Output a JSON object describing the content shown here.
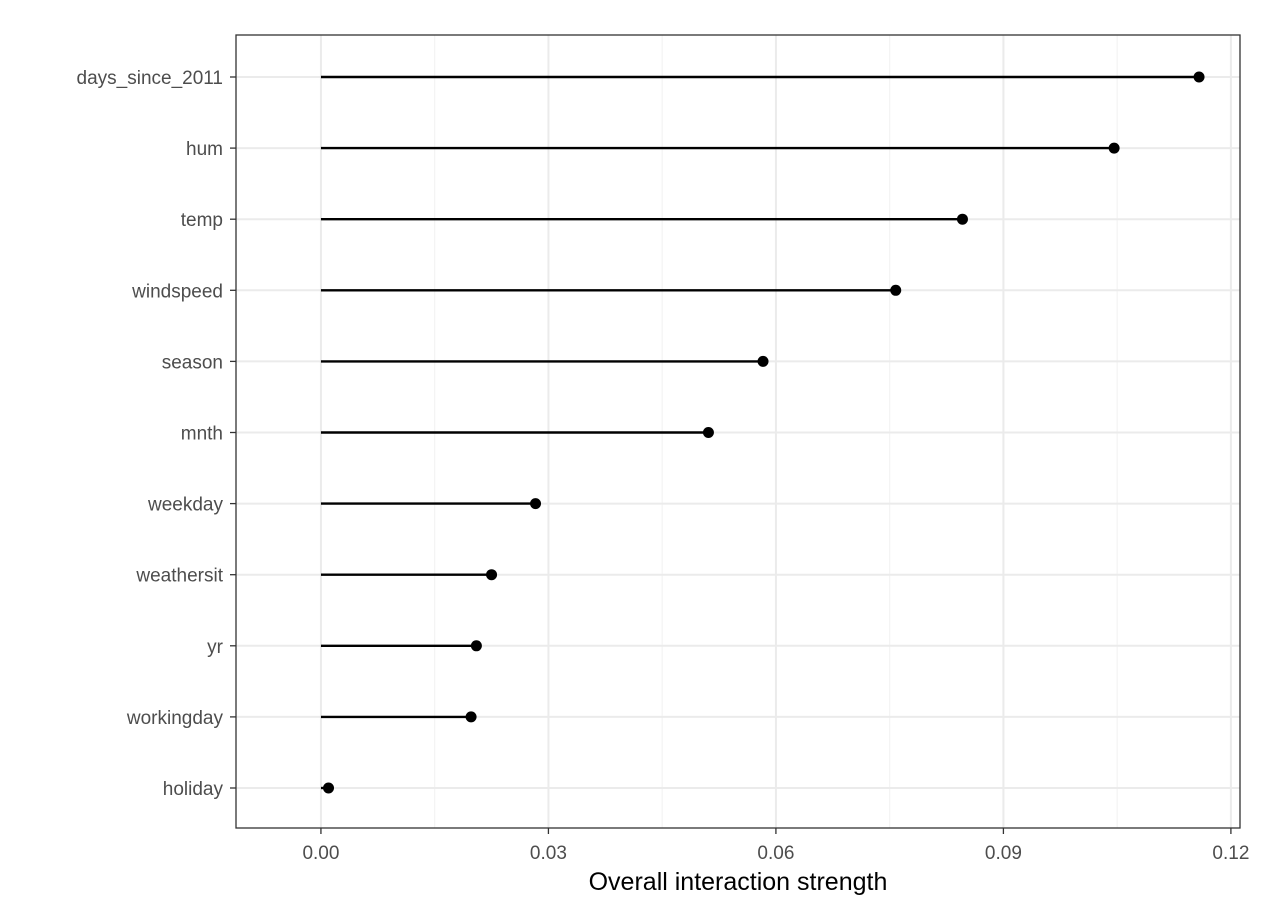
{
  "chart_data": {
    "type": "lollipop",
    "orientation": "horizontal",
    "title": "",
    "xlabel": "Overall interaction strength",
    "ylabel": "",
    "xlim": [
      -0.0112,
      0.1212
    ],
    "x_ticks": [
      0.0,
      0.03,
      0.06,
      0.09,
      0.12
    ],
    "x_tick_labels": [
      "0.00",
      "0.03",
      "0.06",
      "0.09",
      "0.12"
    ],
    "grid": true,
    "legend": "none",
    "categories": [
      "days_since_2011",
      "hum",
      "temp",
      "windspeed",
      "season",
      "mnth",
      "weekday",
      "weathersit",
      "yr",
      "workingday",
      "holiday"
    ],
    "values": [
      0.1158,
      0.1046,
      0.0846,
      0.0758,
      0.0583,
      0.0511,
      0.0283,
      0.0225,
      0.0205,
      0.0198,
      0.001
    ],
    "colors": {
      "mark": "#000000",
      "panel_border": "#333333",
      "grid_major": "#ebebeb",
      "grid_minor": "#f3f3f3",
      "tick_label": "#4d4d4d"
    }
  }
}
